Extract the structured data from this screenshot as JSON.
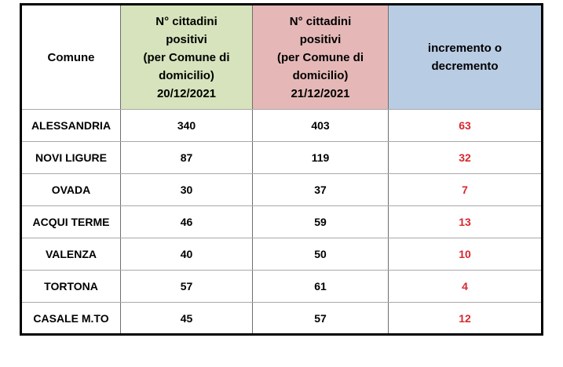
{
  "chart_data": {
    "type": "table",
    "title": "",
    "columns": [
      "Comune",
      "N° cittadini positivi (per Comune di domicilio) 20/12/2021",
      "N° cittadini positivi (per Comune di domicilio) 21/12/2021",
      "incremento o decremento"
    ],
    "rows": [
      [
        "ALESSANDRIA",
        340,
        403,
        63
      ],
      [
        "NOVI LIGURE",
        87,
        119,
        32
      ],
      [
        "OVADA",
        30,
        37,
        7
      ],
      [
        "ACQUI TERME",
        46,
        59,
        13
      ],
      [
        "VALENZA",
        40,
        50,
        10
      ],
      [
        "TORTONA",
        57,
        61,
        4
      ],
      [
        "CASALE M.TO",
        45,
        57,
        12
      ]
    ]
  },
  "table_display": {
    "header": {
      "comune": "Comune",
      "col20": "N° cittadini\npositivi\n(per Comune di\ndomicilio)\n20/12/2021",
      "col21": "N° cittadini\npositivi\n(per Comune di\ndomicilio)\n21/12/2021",
      "delta": "incremento o\ndecremento"
    }
  },
  "colors": {
    "header_col20_bg": "#d6e3bc",
    "header_col21_bg": "#e5b8b7",
    "header_delta_bg": "#b8cce4",
    "delta_text": "#d7282d",
    "outer_border": "#000000",
    "inner_vertical_border": "#6e6e6e",
    "inner_horizontal_border": "#a9a9a9"
  }
}
